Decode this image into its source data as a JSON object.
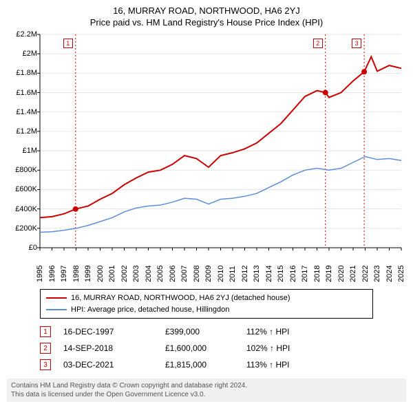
{
  "title": "16, MURRAY ROAD, NORTHWOOD, HA6 2YJ",
  "subtitle": "Price paid vs. HM Land Registry's House Price Index (HPI)",
  "chart": {
    "type": "line",
    "background_color": "#ffffff",
    "grid_color": "#e5e5e5",
    "axis_color": "#000000",
    "label_fontsize": 11,
    "x": {
      "min": 1995,
      "max": 2025,
      "tick_step": 1,
      "labels": [
        "1995",
        "1996",
        "1997",
        "1998",
        "1999",
        "2000",
        "2001",
        "2002",
        "2003",
        "2004",
        "2005",
        "2006",
        "2007",
        "2008",
        "2009",
        "2010",
        "2011",
        "2012",
        "2013",
        "2014",
        "2015",
        "2016",
        "2017",
        "2018",
        "2019",
        "2020",
        "2021",
        "2022",
        "2023",
        "2024",
        "2025"
      ]
    },
    "y": {
      "min": 0,
      "max": 2200000,
      "tick_step": 200000,
      "labels": [
        "£0",
        "£200K",
        "£400K",
        "£600K",
        "£800K",
        "£1M",
        "£1.2M",
        "£1.4M",
        "£1.6M",
        "£1.8M",
        "£2M",
        "£2.2M"
      ]
    },
    "series": [
      {
        "name": "16, MURRAY ROAD, NORTHWOOD, HA6 2YJ (detached house)",
        "color": "#cc0000",
        "line_width": 2,
        "x": [
          1995,
          1996,
          1997,
          1997.96,
          1999,
          2000,
          2001,
          2002,
          2003,
          2004,
          2005,
          2006,
          2007,
          2008,
          2009,
          2010,
          2011,
          2012,
          2013,
          2014,
          2015,
          2016,
          2017,
          2018,
          2018.7,
          2019,
          2020,
          2021,
          2021.92,
          2022.5,
          2023,
          2024,
          2025
        ],
        "y": [
          310000,
          320000,
          350000,
          399000,
          430000,
          500000,
          560000,
          650000,
          720000,
          780000,
          800000,
          860000,
          950000,
          920000,
          830000,
          950000,
          980000,
          1020000,
          1080000,
          1180000,
          1280000,
          1420000,
          1560000,
          1620000,
          1600000,
          1550000,
          1600000,
          1720000,
          1815000,
          1970000,
          1820000,
          1880000,
          1850000
        ]
      },
      {
        "name": "HPI: Average price, detached house, Hillingdon",
        "color": "#5b8fd6",
        "line_width": 1.5,
        "x": [
          1995,
          1996,
          1997,
          1998,
          1999,
          2000,
          2001,
          2002,
          2003,
          2004,
          2005,
          2006,
          2007,
          2008,
          2009,
          2010,
          2011,
          2012,
          2013,
          2014,
          2015,
          2016,
          2017,
          2018,
          2019,
          2020,
          2021,
          2022,
          2023,
          2024,
          2025
        ],
        "y": [
          160000,
          165000,
          180000,
          200000,
          230000,
          270000,
          310000,
          370000,
          410000,
          430000,
          440000,
          470000,
          510000,
          500000,
          450000,
          500000,
          510000,
          530000,
          560000,
          620000,
          680000,
          750000,
          800000,
          820000,
          800000,
          820000,
          880000,
          940000,
          910000,
          920000,
          900000
        ]
      }
    ],
    "markers": [
      {
        "id": "1",
        "year": 1997.96,
        "value": 399000,
        "color": "#cc0000"
      },
      {
        "id": "2",
        "year": 2018.7,
        "value": 1600000,
        "color": "#cc0000"
      },
      {
        "id": "3",
        "year": 2021.92,
        "value": 1815000,
        "color": "#cc0000"
      }
    ],
    "marker_line_color": "#cc0000",
    "marker_dot_radius": 4
  },
  "legend": {
    "items": [
      {
        "label": "16, MURRAY ROAD, NORTHWOOD, HA6 2YJ (detached house)",
        "color": "#cc0000"
      },
      {
        "label": "HPI: Average price, detached house, Hillingdon",
        "color": "#5b8fd6"
      }
    ]
  },
  "marker_table": [
    {
      "id": "1",
      "date": "16-DEC-1997",
      "price": "£399,000",
      "hpi": "112% ↑ HPI"
    },
    {
      "id": "2",
      "date": "14-SEP-2018",
      "price": "£1,600,000",
      "hpi": "102% ↑ HPI"
    },
    {
      "id": "3",
      "date": "03-DEC-2021",
      "price": "£1,815,000",
      "hpi": "113% ↑ HPI"
    }
  ],
  "footer": {
    "line1": "Contains HM Land Registry data © Crown copyright and database right 2024.",
    "line2": "This data is licensed under the Open Government Licence v3.0."
  }
}
